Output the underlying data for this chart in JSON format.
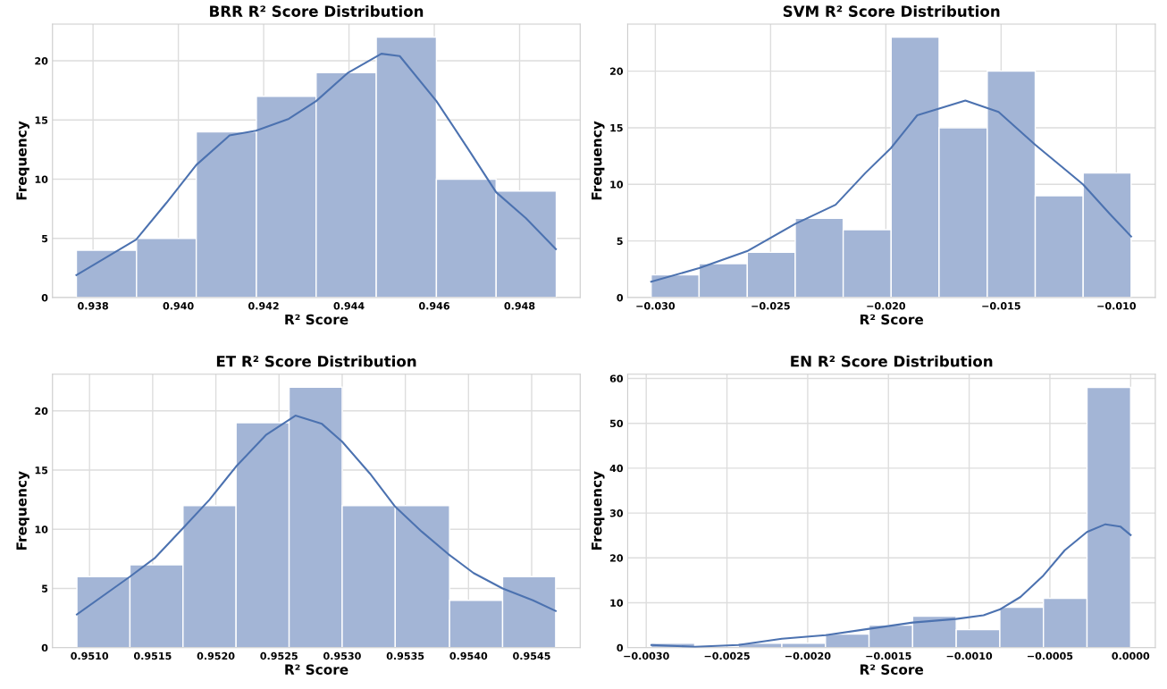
{
  "chart_data": [
    {
      "type": "histogram",
      "title": "BRR R² Score Distribution",
      "xlabel": "R² Score",
      "ylabel": "Frequency",
      "color": "#a3b5d6",
      "grid": true,
      "bins": [
        0.93761,
        0.93902,
        0.94042,
        0.94183,
        0.94323,
        0.94464,
        0.94605,
        0.94745,
        0.94886
      ],
      "values": [
        4,
        5,
        14,
        17,
        19,
        22,
        10,
        9
      ],
      "xlim": [
        0.93705,
        0.94942
      ],
      "ylim": [
        0,
        23.1
      ],
      "xticks": [
        {
          "value": 0.938,
          "label": "0.938"
        },
        {
          "value": 0.94,
          "label": "0.940"
        },
        {
          "value": 0.942,
          "label": "0.942"
        },
        {
          "value": 0.944,
          "label": "0.944"
        },
        {
          "value": 0.946,
          "label": "0.946"
        },
        {
          "value": 0.948,
          "label": "0.948"
        }
      ],
      "yticks": [
        0,
        5,
        10,
        15,
        20
      ],
      "series": [
        {
          "type": "line",
          "color": "#4c72b0",
          "x": [
            0.93761,
            0.93901,
            0.93972,
            0.94042,
            0.9412,
            0.94182,
            0.94259,
            0.94323,
            0.94398,
            0.94476,
            0.94519,
            0.94605,
            0.94684,
            0.94745,
            0.94815,
            0.94885
          ],
          "values": [
            1.9,
            4.9,
            8.0,
            11.2,
            13.7,
            14.1,
            15.1,
            16.6,
            19.0,
            20.6,
            20.4,
            16.6,
            12.3,
            8.9,
            6.7,
            4.1
          ]
        }
      ]
    },
    {
      "type": "histogram",
      "title": "SVM R² Score Distribution",
      "xlabel": "R² Score",
      "ylabel": "Frequency",
      "color": "#a3b5d6",
      "grid": true,
      "bins": [
        -0.03018,
        -0.0281,
        -0.02601,
        -0.02393,
        -0.02185,
        -0.01977,
        -0.01769,
        -0.0156,
        -0.01352,
        -0.01144,
        -0.00936
      ],
      "values": [
        2,
        3,
        4,
        7,
        6,
        23,
        15,
        20,
        9,
        11
      ],
      "xlim": [
        -0.0312,
        -0.00831
      ],
      "ylim": [
        0,
        24.15
      ],
      "xticks": [
        {
          "value": -0.03,
          "label": "−0.030"
        },
        {
          "value": -0.025,
          "label": "−0.025"
        },
        {
          "value": -0.02,
          "label": "−0.020"
        },
        {
          "value": -0.015,
          "label": "−0.015"
        },
        {
          "value": -0.01,
          "label": "−0.010"
        }
      ],
      "yticks": [
        0,
        5,
        10,
        15,
        20
      ],
      "series": [
        {
          "type": "line",
          "color": "#4c72b0",
          "x": [
            -0.03018,
            -0.0281,
            -0.02602,
            -0.02394,
            -0.02218,
            -0.02089,
            -0.01978,
            -0.01864,
            -0.01655,
            -0.01511,
            -0.01352,
            -0.01222,
            -0.01145,
            -0.01029,
            -0.00936
          ],
          "values": [
            1.4,
            2.6,
            4.1,
            6.5,
            8.2,
            11.0,
            13.2,
            16.1,
            17.4,
            16.4,
            13.5,
            11.3,
            10.0,
            7.4,
            5.4
          ]
        }
      ]
    },
    {
      "type": "histogram",
      "title": "ET R² Score Distribution",
      "xlabel": "R² Score",
      "ylabel": "Frequency",
      "color": "#a3b5d6",
      "grid": true,
      "bins": [
        0.9509,
        0.95132,
        0.95174,
        0.95216,
        0.95258,
        0.953,
        0.95342,
        0.95385,
        0.95427,
        0.95469
      ],
      "values": [
        6,
        7,
        12,
        19,
        22,
        12,
        12,
        4,
        6
      ],
      "xlim": [
        0.950707,
        0.954884
      ],
      "ylim": [
        0,
        23.1
      ],
      "xticks": [
        {
          "value": 0.951,
          "label": "0.9510"
        },
        {
          "value": 0.9515,
          "label": "0.9515"
        },
        {
          "value": 0.952,
          "label": "0.9520"
        },
        {
          "value": 0.9525,
          "label": "0.9525"
        },
        {
          "value": 0.953,
          "label": "0.9530"
        },
        {
          "value": 0.9535,
          "label": "0.9535"
        },
        {
          "value": 0.954,
          "label": "0.9540"
        },
        {
          "value": 0.9545,
          "label": "0.9545"
        }
      ],
      "yticks": [
        0,
        5,
        10,
        15,
        20
      ],
      "series": [
        {
          "type": "line",
          "color": "#4c72b0",
          "x": [
            0.9509,
            0.95132,
            0.95152,
            0.95174,
            0.95195,
            0.95216,
            0.9524,
            0.95263,
            0.95284,
            0.953,
            0.95322,
            0.95342,
            0.95363,
            0.95384,
            0.95404,
            0.95427,
            0.95451,
            0.95469
          ],
          "values": [
            2.8,
            6.0,
            7.6,
            10.1,
            12.5,
            15.3,
            18.0,
            19.6,
            18.9,
            17.4,
            14.7,
            11.9,
            9.8,
            7.9,
            6.3,
            5.0,
            4.0,
            3.1
          ]
        }
      ]
    },
    {
      "type": "histogram",
      "title": "EN R² Score Distribution",
      "xlabel": "R² Score",
      "ylabel": "Frequency",
      "color": "#a3b5d6",
      "grid": true,
      "bins": [
        -0.00297,
        -0.0027,
        -0.00243,
        -0.00216,
        -0.00189,
        -0.00162,
        -0.00135,
        -0.00108,
        -0.00081,
        -0.00054,
        -0.00027,
        0.0
      ],
      "values": [
        1,
        0,
        1,
        1,
        3,
        5,
        7,
        4,
        9,
        11,
        58
      ],
      "xlim": [
        -0.003115,
        0.000153
      ],
      "ylim": [
        0,
        60.95
      ],
      "xticks": [
        {
          "value": -0.003,
          "label": "−0.0030"
        },
        {
          "value": -0.0025,
          "label": "−0.0025"
        },
        {
          "value": -0.002,
          "label": "−0.0020"
        },
        {
          "value": -0.0015,
          "label": "−0.0015"
        },
        {
          "value": -0.001,
          "label": "−0.0010"
        },
        {
          "value": -0.0005,
          "label": "−0.0005"
        },
        {
          "value": 0.0,
          "label": "0.0000"
        }
      ],
      "yticks": [
        0,
        10,
        20,
        30,
        40,
        50,
        60
      ],
      "series": [
        {
          "type": "line",
          "color": "#4c72b0",
          "x": [
            -0.002968,
            -0.002698,
            -0.00243,
            -0.00216,
            -0.001889,
            -0.001619,
            -0.001349,
            -0.001081,
            -0.000911,
            -0.000811,
            -0.000682,
            -0.00054,
            -0.000408,
            -0.00027,
            -0.000156,
            -6.4e-05,
            0.0
          ],
          "values": [
            0.6,
            0.2,
            0.6,
            2.0,
            2.8,
            4.2,
            5.6,
            6.4,
            7.2,
            8.5,
            11.3,
            16.1,
            21.7,
            25.8,
            27.5,
            27.0,
            25.1
          ]
        }
      ]
    }
  ]
}
